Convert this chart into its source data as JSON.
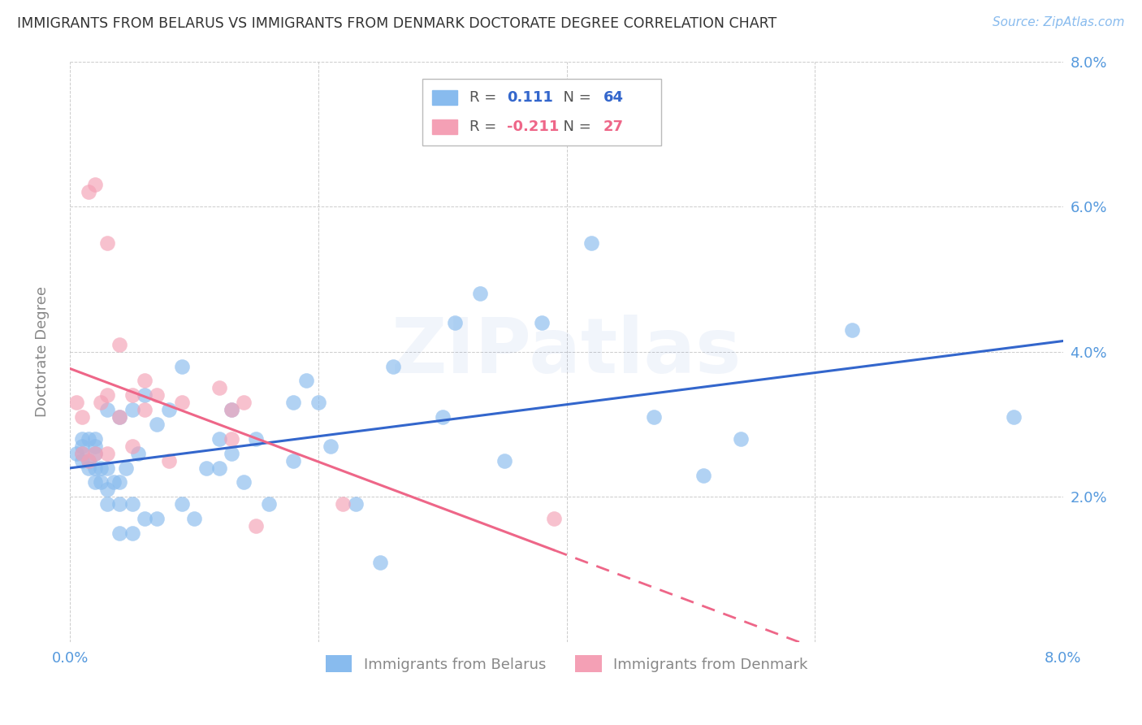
{
  "title": "IMMIGRANTS FROM BELARUS VS IMMIGRANTS FROM DENMARK DOCTORATE DEGREE CORRELATION CHART",
  "source": "Source: ZipAtlas.com",
  "ylabel": "Doctorate Degree",
  "xlim": [
    0.0,
    0.08
  ],
  "ylim": [
    0.0,
    0.08
  ],
  "color_belarus": "#88BBEE",
  "color_denmark": "#F4A0B5",
  "color_trendline_belarus": "#3366CC",
  "color_trendline_denmark": "#EE6688",
  "watermark_text": "ZIPatlas",
  "watermark_color": "#4477CC",
  "watermark_alpha": 0.07,
  "belarus_x": [
    0.0005,
    0.001,
    0.001,
    0.001,
    0.001,
    0.0015,
    0.0015,
    0.0015,
    0.002,
    0.002,
    0.002,
    0.002,
    0.002,
    0.0025,
    0.0025,
    0.003,
    0.003,
    0.003,
    0.003,
    0.0035,
    0.004,
    0.004,
    0.004,
    0.004,
    0.0045,
    0.005,
    0.005,
    0.005,
    0.0055,
    0.006,
    0.006,
    0.007,
    0.007,
    0.008,
    0.009,
    0.009,
    0.01,
    0.011,
    0.012,
    0.012,
    0.013,
    0.013,
    0.014,
    0.015,
    0.016,
    0.018,
    0.018,
    0.019,
    0.02,
    0.021,
    0.023,
    0.025,
    0.026,
    0.03,
    0.031,
    0.033,
    0.035,
    0.038,
    0.042,
    0.047,
    0.051,
    0.054,
    0.063,
    0.076
  ],
  "belarus_y": [
    0.026,
    0.025,
    0.026,
    0.027,
    0.028,
    0.024,
    0.025,
    0.028,
    0.022,
    0.024,
    0.026,
    0.027,
    0.028,
    0.022,
    0.024,
    0.019,
    0.021,
    0.024,
    0.032,
    0.022,
    0.015,
    0.019,
    0.022,
    0.031,
    0.024,
    0.015,
    0.019,
    0.032,
    0.026,
    0.017,
    0.034,
    0.017,
    0.03,
    0.032,
    0.019,
    0.038,
    0.017,
    0.024,
    0.024,
    0.028,
    0.026,
    0.032,
    0.022,
    0.028,
    0.019,
    0.025,
    0.033,
    0.036,
    0.033,
    0.027,
    0.019,
    0.011,
    0.038,
    0.031,
    0.044,
    0.048,
    0.025,
    0.044,
    0.055,
    0.031,
    0.023,
    0.028,
    0.043,
    0.031
  ],
  "denmark_x": [
    0.0005,
    0.001,
    0.001,
    0.0015,
    0.0015,
    0.002,
    0.002,
    0.0025,
    0.003,
    0.003,
    0.003,
    0.004,
    0.004,
    0.005,
    0.005,
    0.006,
    0.006,
    0.007,
    0.008,
    0.009,
    0.012,
    0.013,
    0.013,
    0.014,
    0.015,
    0.022,
    0.039
  ],
  "denmark_y": [
    0.033,
    0.026,
    0.031,
    0.025,
    0.062,
    0.026,
    0.063,
    0.033,
    0.026,
    0.034,
    0.055,
    0.031,
    0.041,
    0.027,
    0.034,
    0.032,
    0.036,
    0.034,
    0.025,
    0.033,
    0.035,
    0.028,
    0.032,
    0.033,
    0.016,
    0.019,
    0.017
  ],
  "background_color": "#ffffff",
  "grid_color": "#cccccc",
  "tick_color": "#5599DD",
  "label_color": "#888888",
  "title_color": "#333333",
  "source_color": "#88BBEE",
  "legend_r1_val": "0.111",
  "legend_r1_n": "64",
  "legend_r2_val": "-0.211",
  "legend_r2_n": "27",
  "bottom_legend_labels": [
    "Immigrants from Belarus",
    "Immigrants from Denmark"
  ]
}
